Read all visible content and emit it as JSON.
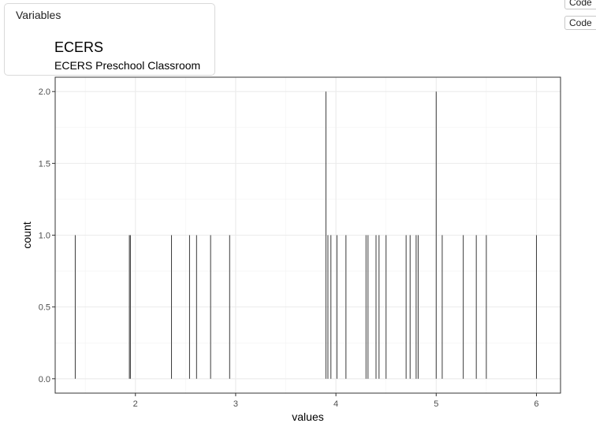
{
  "panel": {
    "header": "Variables"
  },
  "buttons": {
    "code1": "Code",
    "code2": "Code"
  },
  "chart_data": {
    "type": "bar",
    "title": "ECERS",
    "subtitle": "ECERS Preschool Classroom",
    "xlabel": "values",
    "ylabel": "count",
    "xlim": [
      1.2,
      6.24
    ],
    "ylim": [
      -0.1,
      2.1
    ],
    "xticks": [
      2,
      3,
      4,
      5,
      6
    ],
    "yticks": [
      0.0,
      0.5,
      1.0,
      1.5,
      2.0
    ],
    "grid": true,
    "x": [
      1.4,
      1.94,
      1.95,
      2.36,
      2.54,
      2.61,
      2.75,
      2.94,
      3.9,
      3.92,
      3.95,
      4.01,
      4.1,
      4.3,
      4.32,
      4.4,
      4.43,
      4.5,
      4.7,
      4.74,
      4.8,
      4.82,
      5.0,
      5.06,
      5.27,
      5.4,
      5.5,
      6.0
    ],
    "values": [
      1,
      1,
      1,
      1,
      1,
      1,
      1,
      1,
      2,
      1,
      1,
      1,
      1,
      1,
      1,
      1,
      1,
      1,
      1,
      1,
      1,
      1,
      2,
      1,
      1,
      1,
      1,
      1
    ]
  }
}
